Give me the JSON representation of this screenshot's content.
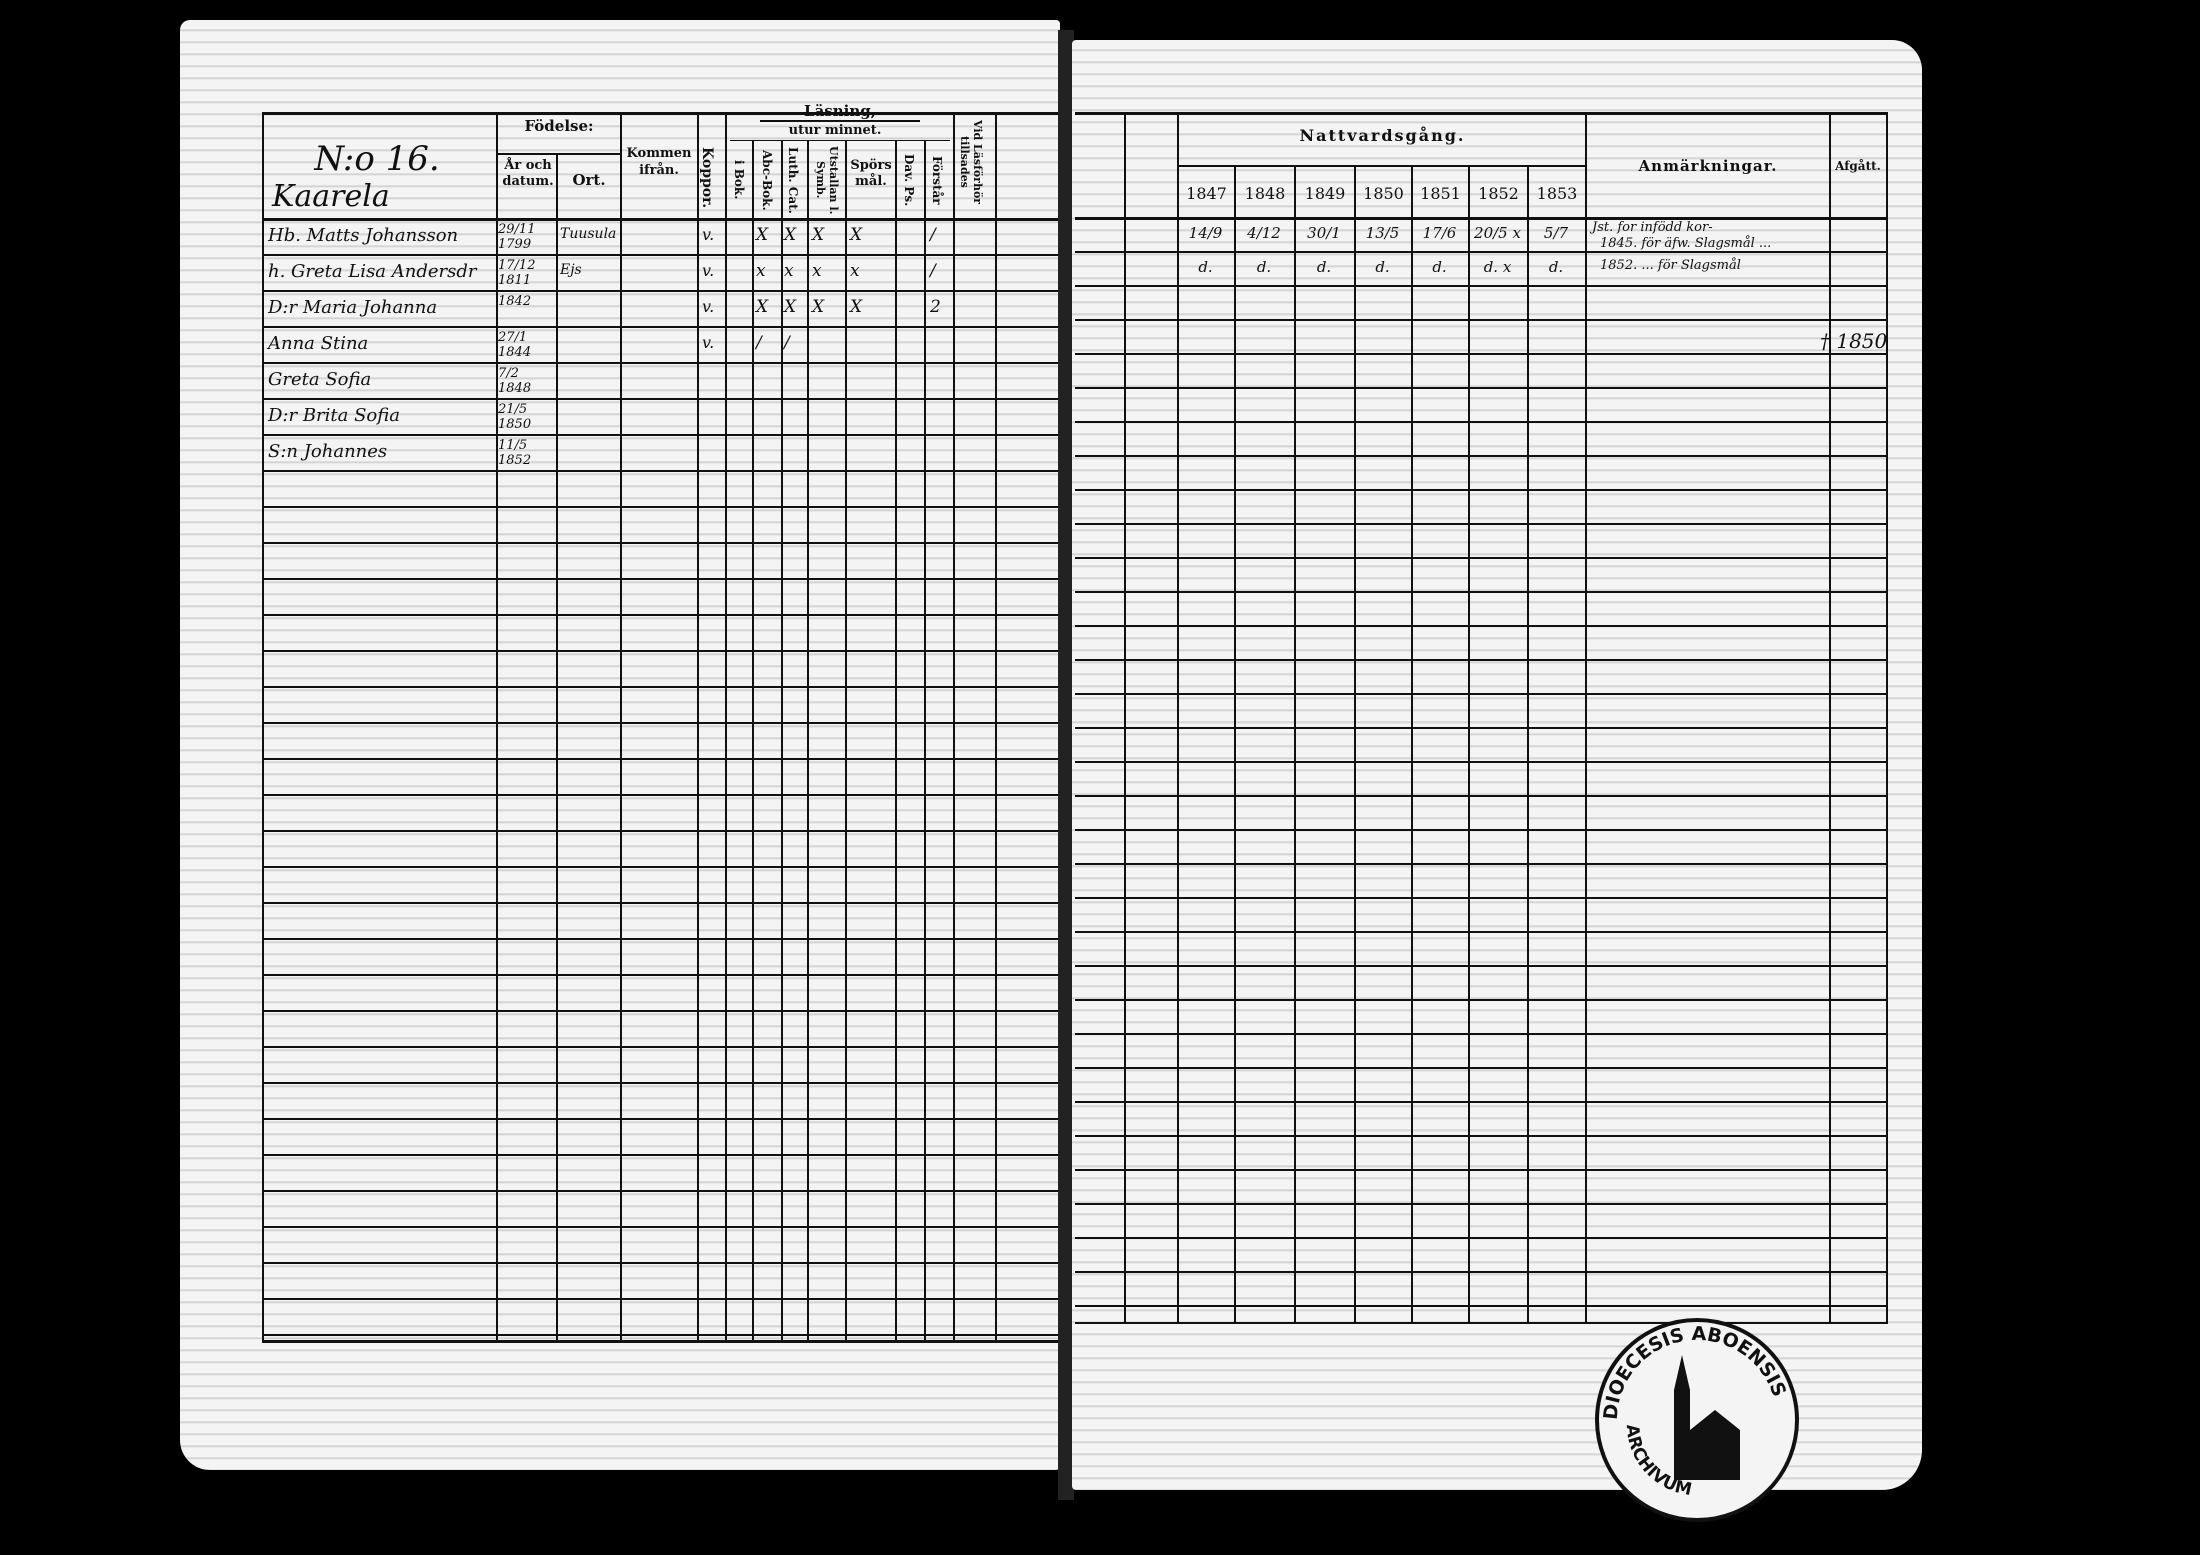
{
  "left_page": {
    "household_number": "N:o 16.",
    "farm_name": "Kaarela",
    "headers": {
      "birth": "Födelse:",
      "birth_date": "År och datum.",
      "birth_place": "Ort.",
      "came_from": "Kommen ifrån.",
      "smallpox": "Koppor.",
      "reading": "Läsning,",
      "by_heart": "utur minnet.",
      "in_book": "i Bok.",
      "abc_book": "Abc-Bok.",
      "luther_catechism": "Luth. Cat.",
      "symbols": "Utstallan l. Symb.",
      "questions": "Spörsmål.",
      "psalms": "Dav. Ps.",
      "understands": "Förstår",
      "catechetical": "Vid Läsförhör tillsades"
    },
    "persons": [
      {
        "name": "Hb. Matts Johansson",
        "born": "29/11 1799",
        "place": "Tuusula",
        "smallpox": "v.",
        "marks": [
          "X",
          "X",
          "X",
          "X",
          "/"
        ]
      },
      {
        "name": "h. Greta Lisa Andersdr",
        "born": "17/12 1811",
        "place": "Ejs",
        "smallpox": "v.",
        "marks": [
          "x",
          "x",
          "x",
          "x",
          "/"
        ]
      },
      {
        "name": "D:r Maria Johanna",
        "born": "1842",
        "place": "",
        "smallpox": "v.",
        "marks": [
          "X",
          "X",
          "X",
          "X",
          "2"
        ]
      },
      {
        "name": "Anna Stina",
        "born": "27/1 1844",
        "place": "",
        "smallpox": "v.",
        "marks": [
          "/",
          "/"
        ]
      },
      {
        "name": "Greta Sofia",
        "born": "7/2 1848",
        "place": "",
        "smallpox": "",
        "marks": []
      },
      {
        "name": "D:r Brita Sofia",
        "born": "21/5 1850",
        "place": "",
        "smallpox": "",
        "marks": []
      },
      {
        "name": "S:n Johannes",
        "born": "11/5 1852",
        "place": "",
        "smallpox": "",
        "marks": []
      }
    ]
  },
  "right_page": {
    "headers": {
      "communion": "Nattvardsgång.",
      "remarks": "Anmärkningar.",
      "departed": "Afgått."
    },
    "years": [
      "1847",
      "1848",
      "1849",
      "1850",
      "1851",
      "1852",
      "1853"
    ],
    "communion_rows": [
      [
        "14/9",
        "4/12",
        "30/1",
        "13/5",
        "17/6",
        "20/5 x",
        "5/7"
      ],
      [
        "d.",
        "d.",
        "d.",
        "d.",
        "d.",
        "d. x",
        "d."
      ]
    ],
    "remarks_text": [
      "Jst. for infödd kor-",
      "1845. för äfw. Slagsmål ...",
      "1852. ... för Slagsmål"
    ],
    "departed_note": "† 1850"
  },
  "stamp": {
    "text": "DIOECESIS ABOENSIS",
    "lower_text": "ARCHIVUM"
  }
}
